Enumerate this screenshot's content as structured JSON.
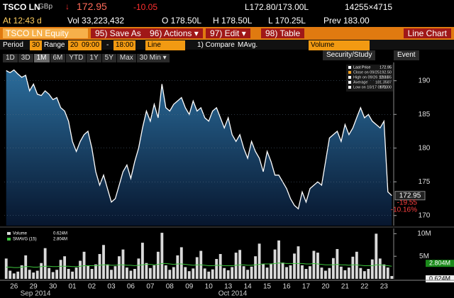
{
  "header": {
    "ticker": "TSCO LN",
    "currency": "GBp",
    "arrow": "↓",
    "price": "172.95",
    "change": "-10.05",
    "bid_ask": "L172.80/173.00L",
    "size": "14255×4715",
    "time": "At 12:43 d",
    "volume": "Vol 33,223,432",
    "open": "O 178.50L",
    "high": "H 178.50L",
    "low": "L 170.25L",
    "prev": "Prev 183.00"
  },
  "toolbar": {
    "security": "TSCO LN Equity",
    "buttons": [
      "95) Save As",
      "96) Actions ▾",
      "97) Edit ▾",
      "98) Table"
    ],
    "view": "Line Chart"
  },
  "settings": {
    "period_label": "Period",
    "period": "30",
    "range_label": "Range",
    "range": "20",
    "start": "09:00",
    "dash": "-",
    "end": "18:00",
    "style": "Line",
    "compare": "1) Compare",
    "mavg": "MAvg.",
    "study": "Volume"
  },
  "timeframes": [
    "1D",
    "3D",
    "1M",
    "6M",
    "YTD",
    "1Y",
    "5Y",
    "Max",
    "30 Min ▾"
  ],
  "tools": [
    "Security/Study",
    "Event"
  ],
  "months": [
    "Sep 2014",
    "Oct 2014"
  ],
  "chart_data": [
    {
      "type": "line",
      "series": [
        {
          "name": "Last Price",
          "color": "#ffffff",
          "last_label": "172.95",
          "values": [
            191.5,
            191.2,
            191.6,
            191.0,
            190.5,
            190.8,
            188.5,
            189.5,
            188.0,
            187.8,
            188.5,
            188.0,
            187.2,
            187.5,
            186.0,
            185.5,
            184.0,
            181.0,
            179.5,
            181.0,
            182.0,
            182.5,
            180.0,
            176.5,
            174.5,
            176.0,
            174.0,
            172.0,
            172.5,
            174.5,
            176.5,
            177.5,
            175.5,
            178.0,
            180.0,
            183.0,
            185.5,
            184.0,
            186.5,
            184.5,
            189.5,
            186.0,
            185.5,
            186.5,
            187.0,
            187.5,
            186.0,
            185.0,
            187.0,
            185.5,
            186.0,
            184.5,
            184.0,
            185.5,
            186.0,
            184.5,
            183.0,
            184.5,
            182.0,
            181.0,
            182.0,
            180.0,
            178.5,
            181.0,
            179.5,
            178.5,
            176.5,
            179.5,
            178.0,
            176.0,
            176.0,
            175.0,
            174.0,
            172.5,
            171.5,
            171.0,
            173.5,
            172.0,
            174.0,
            174.5,
            175.0,
            174.5,
            178.0,
            181.5,
            182.0,
            182.5,
            181.0,
            183.5,
            182.0,
            183.0,
            184.5,
            186.0,
            184.5,
            185.0,
            184.0,
            183.5,
            183.0,
            184.0,
            173.5,
            172.95
          ]
        }
      ],
      "info_box": [
        {
          "label": "Close on 09/25",
          "value": "192.50"
        },
        {
          "label": "High on 09/26 12:30",
          "value": "191.65"
        },
        {
          "label": "Average",
          "value": "181.3587"
        },
        {
          "label": "Low on 10/17 09:00",
          "value": "171.00"
        }
      ],
      "annotations": [
        "-19.55",
        "-10.16%"
      ],
      "ylim": [
        168.5,
        192.5
      ],
      "yticks": [
        170,
        175,
        180,
        185,
        190
      ],
      "grid": true
    },
    {
      "type": "bar",
      "categories": [
        null,
        null,
        "26",
        null,
        null,
        null,
        null,
        "29",
        null,
        null,
        null,
        null,
        "30",
        null,
        null,
        null,
        null,
        "01",
        null,
        null,
        null,
        null,
        "02",
        null,
        null,
        null,
        null,
        "03",
        null,
        null,
        null,
        null,
        "06",
        null,
        null,
        null,
        null,
        "07",
        null,
        null,
        null,
        null,
        "08",
        null,
        null,
        null,
        null,
        "09",
        null,
        null,
        null,
        null,
        "10",
        null,
        null,
        null,
        null,
        "13",
        null,
        null,
        null,
        null,
        "14",
        null,
        null,
        null,
        null,
        "15",
        null,
        null,
        null,
        null,
        "16",
        null,
        null,
        null,
        null,
        "17",
        null,
        null,
        null,
        null,
        "20",
        null,
        null,
        null,
        null,
        "21",
        null,
        null,
        null,
        null,
        "22",
        null,
        null,
        null,
        null,
        "23",
        null,
        null
      ],
      "series": [
        {
          "name": "Volume",
          "color": "#d9d9d9",
          "value_label": "0.624M",
          "values": [
            4.5,
            1.8,
            1.2,
            1.6,
            3.0,
            5.2,
            2.0,
            1.4,
            1.8,
            3.5,
            6.8,
            2.4,
            1.5,
            2.0,
            4.2,
            5.0,
            2.2,
            1.6,
            2.5,
            4.0,
            6.0,
            3.0,
            2.2,
            3.2,
            5.5,
            7.5,
            3.2,
            2.0,
            2.8,
            5.0,
            6.5,
            2.5,
            1.8,
            2.2,
            4.5,
            8.0,
            3.5,
            2.4,
            3.0,
            6.0,
            10.2,
            3.0,
            2.0,
            2.6,
            5.2,
            7.0,
            2.6,
            1.7,
            2.3,
            4.8,
            6.2,
            2.3,
            1.6,
            2.1,
            4.4,
            5.5,
            2.4,
            1.9,
            2.6,
            5.8,
            6.4,
            2.8,
            2.0,
            2.7,
            5.0,
            7.8,
            3.3,
            2.5,
            3.4,
            6.5,
            8.5,
            3.6,
            2.6,
            3.0,
            5.6,
            7.2,
            3.0,
            2.2,
            2.8,
            6.2,
            5.8,
            2.5,
            1.8,
            2.4,
            4.6,
            6.6,
            2.7,
            1.9,
            2.5,
            4.9,
            6.0,
            2.4,
            1.7,
            2.2,
            4.3,
            10.0,
            4.5,
            3.2,
            2.5,
            0.624
          ]
        },
        {
          "name": "SMAVG (15)",
          "color": "#3cc43c",
          "value_label": "2.804M",
          "values": [
            2.6,
            2.6,
            2.5,
            2.5,
            2.6,
            2.7,
            2.7,
            2.6,
            2.6,
            2.7,
            2.8,
            2.8,
            2.7,
            2.7,
            2.8,
            2.8,
            2.8,
            2.7,
            2.7,
            2.8,
            2.9,
            2.9,
            2.9,
            2.9,
            3.0,
            3.1,
            3.1,
            3.0,
            3.0,
            3.1,
            3.1,
            3.0,
            3.0,
            2.9,
            3.0,
            3.1,
            3.2,
            3.2,
            3.1,
            3.2,
            3.4,
            3.4,
            3.3,
            3.2,
            3.3,
            3.3,
            3.2,
            3.1,
            3.0,
            3.1,
            3.1,
            3.0,
            2.9,
            2.9,
            3.0,
            3.0,
            2.9,
            2.9,
            2.9,
            3.0,
            3.1,
            3.1,
            3.0,
            3.0,
            3.1,
            3.2,
            3.3,
            3.3,
            3.3,
            3.4,
            3.5,
            3.5,
            3.4,
            3.4,
            3.4,
            3.4,
            3.4,
            3.3,
            3.3,
            3.4,
            3.3,
            3.2,
            3.1,
            3.1,
            3.1,
            3.2,
            3.1,
            3.1,
            3.0,
            3.1,
            3.1,
            3.0,
            2.9,
            2.9,
            2.9,
            3.1,
            3.1,
            3.0,
            2.9,
            2.804
          ]
        }
      ],
      "ylim": [
        0,
        11
      ],
      "yticks": [
        {
          "value": 5,
          "label": "5M"
        },
        {
          "value": 10,
          "label": "10M"
        }
      ]
    }
  ]
}
